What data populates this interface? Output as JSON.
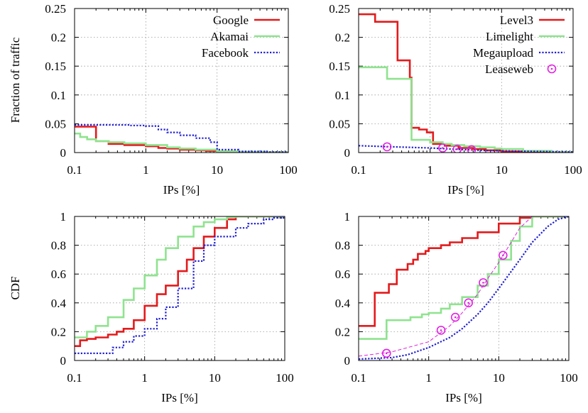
{
  "colors": {
    "series1": "#e41a1c",
    "series2": "#8fe38f",
    "series3": "#1f1fd6",
    "series4": "#e020e0"
  },
  "icons": {
    "line": "legend-line-sample",
    "circle": "legend-circle-marker"
  },
  "chart_data": [
    {
      "type": "line",
      "xscale": "log",
      "xlim": [
        0.1,
        100
      ],
      "ylim": [
        0,
        0.25
      ],
      "xticks": [
        "0.1",
        "1",
        "10",
        "100"
      ],
      "yticks": [
        "0",
        "0.05",
        "0.1",
        "0.15",
        "0.2",
        "0.25"
      ],
      "xlabel": "IPs [%]",
      "ylabel": "Fraction of traffic",
      "grid": true,
      "legend": "top-right",
      "series": [
        {
          "name": "Google",
          "style": "solid",
          "color": "#e41a1c",
          "step": true,
          "x": [
            0.1,
            0.15,
            0.2,
            0.3,
            0.5,
            1,
            1.5,
            2,
            3,
            5,
            7,
            10,
            20,
            50,
            100
          ],
          "y": [
            0.045,
            0.045,
            0.02,
            0.015,
            0.013,
            0.011,
            0.008,
            0.007,
            0.005,
            0.004,
            0.003,
            0.002,
            0.001,
            0.0005,
            0.0002
          ]
        },
        {
          "name": "Akamai",
          "style": "solid",
          "color": "#8fe38f",
          "step": true,
          "x": [
            0.1,
            0.12,
            0.15,
            0.2,
            0.3,
            0.5,
            1,
            2,
            3,
            5,
            10,
            20,
            50,
            100
          ],
          "y": [
            0.033,
            0.027,
            0.023,
            0.02,
            0.018,
            0.016,
            0.013,
            0.009,
            0.007,
            0.005,
            0.002,
            0.001,
            0.0005,
            0.0002
          ]
        },
        {
          "name": "Facebook",
          "style": "dotted",
          "color": "#1f1fd6",
          "step": true,
          "x": [
            0.1,
            0.3,
            0.6,
            1,
            1.5,
            2,
            3,
            5,
            8,
            10,
            20,
            50,
            100
          ],
          "y": [
            0.048,
            0.048,
            0.047,
            0.046,
            0.04,
            0.035,
            0.03,
            0.025,
            0.018,
            0.005,
            0.002,
            0.001,
            0.0003
          ]
        }
      ]
    },
    {
      "type": "line",
      "xscale": "log",
      "xlim": [
        0.1,
        100
      ],
      "ylim": [
        0,
        0.25
      ],
      "xticks": [
        "0.1",
        "1",
        "10",
        "100"
      ],
      "yticks": [
        "0",
        "0.05",
        "0.1",
        "0.15",
        "0.2",
        "0.25"
      ],
      "xlabel": "IPs [%]",
      "ylabel": "",
      "grid": true,
      "legend": "top-right",
      "series": [
        {
          "name": "Level3",
          "style": "solid",
          "color": "#e41a1c",
          "step": true,
          "x": [
            0.1,
            0.17,
            0.35,
            0.52,
            0.55,
            0.7,
            0.9,
            1.1,
            1.6,
            2.5,
            4,
            6,
            10,
            30,
            100
          ],
          "y": [
            0.24,
            0.227,
            0.16,
            0.13,
            0.043,
            0.04,
            0.035,
            0.015,
            0.012,
            0.008,
            0.006,
            0.004,
            0.002,
            0.001,
            0.0005
          ]
        },
        {
          "name": "Limelight",
          "style": "solid",
          "color": "#8fe38f",
          "step": true,
          "x": [
            0.1,
            0.25,
            0.52,
            0.55,
            1,
            1.5,
            2,
            3,
            5,
            8,
            10,
            20,
            50,
            100
          ],
          "y": [
            0.148,
            0.128,
            0.128,
            0.022,
            0.018,
            0.015,
            0.013,
            0.011,
            0.009,
            0.007,
            0.006,
            0.003,
            0.001,
            0.0004
          ]
        },
        {
          "name": "Megaupload",
          "style": "dotted",
          "color": "#1f1fd6",
          "step": false,
          "x": [
            0.1,
            0.3,
            1,
            2,
            5,
            10,
            30,
            100
          ],
          "y": [
            0.012,
            0.01,
            0.008,
            0.006,
            0.004,
            0.003,
            0.002,
            0.001
          ]
        },
        {
          "name": "Leaseweb",
          "style": "markers",
          "color": "#e020e0",
          "step": false,
          "x": [
            0.25,
            1.5,
            2.4,
            3.8
          ],
          "y": [
            0.01,
            0.008,
            0.006,
            0.005
          ]
        }
      ]
    },
    {
      "type": "line",
      "xscale": "log",
      "xlim": [
        0.1,
        100
      ],
      "ylim": [
        0,
        1
      ],
      "xticks": [
        "0.1",
        "1",
        "10",
        "100"
      ],
      "yticks": [
        "0",
        "0.2",
        "0.4",
        "0.6",
        "0.8",
        "1"
      ],
      "xlabel": "IPs [%]",
      "ylabel": "CDF",
      "grid": true,
      "series": [
        {
          "name": "Google",
          "style": "solid",
          "color": "#e41a1c",
          "step": true,
          "x": [
            0.1,
            0.12,
            0.15,
            0.2,
            0.3,
            0.4,
            0.5,
            0.7,
            1,
            1.5,
            2,
            3,
            4,
            5,
            7,
            10,
            15,
            20,
            100
          ],
          "y": [
            0.1,
            0.14,
            0.15,
            0.16,
            0.18,
            0.2,
            0.22,
            0.28,
            0.38,
            0.46,
            0.52,
            0.62,
            0.7,
            0.78,
            0.86,
            0.92,
            0.98,
            1,
            1
          ]
        },
        {
          "name": "Akamai",
          "style": "solid",
          "color": "#8fe38f",
          "step": true,
          "x": [
            0.1,
            0.15,
            0.2,
            0.3,
            0.5,
            0.7,
            1,
            1.5,
            2,
            3,
            5,
            7,
            10,
            15,
            20,
            100
          ],
          "y": [
            0.16,
            0.2,
            0.24,
            0.3,
            0.42,
            0.5,
            0.59,
            0.7,
            0.78,
            0.86,
            0.93,
            0.96,
            0.98,
            0.995,
            1,
            1
          ]
        },
        {
          "name": "Facebook",
          "style": "dotted",
          "color": "#1f1fd6",
          "step": true,
          "x": [
            0.1,
            0.3,
            0.35,
            0.5,
            0.7,
            1,
            1.5,
            2,
            3,
            5,
            7,
            10,
            20,
            30,
            50,
            70,
            100
          ],
          "y": [
            0.05,
            0.05,
            0.09,
            0.13,
            0.17,
            0.22,
            0.29,
            0.37,
            0.5,
            0.69,
            0.8,
            0.86,
            0.92,
            0.95,
            0.98,
            0.99,
            1
          ]
        }
      ]
    },
    {
      "type": "line",
      "xscale": "log",
      "xlim": [
        0.1,
        100
      ],
      "ylim": [
        0,
        1
      ],
      "xticks": [
        "0.1",
        "1",
        "10",
        "100"
      ],
      "yticks": [
        "0",
        "0.2",
        "0.4",
        "0.6",
        "0.8",
        "1"
      ],
      "xlabel": "IPs [%]",
      "ylabel": "",
      "grid": true,
      "series": [
        {
          "name": "Level3",
          "style": "solid",
          "color": "#e41a1c",
          "step": true,
          "x": [
            0.1,
            0.17,
            0.27,
            0.35,
            0.5,
            0.6,
            0.7,
            0.9,
            1,
            1.5,
            2,
            3,
            5,
            10,
            20,
            30,
            100
          ],
          "y": [
            0.24,
            0.47,
            0.53,
            0.63,
            0.67,
            0.7,
            0.74,
            0.76,
            0.78,
            0.8,
            0.82,
            0.85,
            0.89,
            0.95,
            0.99,
            1,
            1
          ]
        },
        {
          "name": "Limelight",
          "style": "solid",
          "color": "#8fe38f",
          "step": true,
          "x": [
            0.1,
            0.25,
            0.55,
            0.8,
            1,
            1.5,
            2,
            3,
            5,
            7,
            10,
            15,
            20,
            30,
            100
          ],
          "y": [
            0.15,
            0.28,
            0.3,
            0.32,
            0.33,
            0.36,
            0.39,
            0.44,
            0.52,
            0.6,
            0.7,
            0.83,
            0.93,
            1,
            1
          ]
        },
        {
          "name": "Megaupload",
          "style": "dotted",
          "color": "#1f1fd6",
          "step": false,
          "x": [
            0.1,
            0.3,
            0.5,
            1,
            2,
            3,
            5,
            7,
            10,
            20,
            30,
            50,
            70,
            100
          ],
          "y": [
            0.01,
            0.02,
            0.04,
            0.09,
            0.16,
            0.22,
            0.32,
            0.4,
            0.5,
            0.7,
            0.82,
            0.93,
            0.98,
            1
          ]
        },
        {
          "name": "Leaseweb",
          "style": "markers",
          "color": "#e020e0",
          "step": false,
          "x": [
            0.25,
            1.5,
            2.4,
            3.7,
            6,
            11.5
          ],
          "y": [
            0.05,
            0.21,
            0.3,
            0.4,
            0.54,
            0.73
          ],
          "fit_x": [
            0.1,
            0.3,
            1,
            2,
            3,
            5,
            7,
            10,
            15,
            20,
            30
          ],
          "fit_y": [
            0.03,
            0.06,
            0.13,
            0.24,
            0.33,
            0.46,
            0.57,
            0.68,
            0.82,
            0.92,
            1
          ]
        }
      ]
    }
  ]
}
